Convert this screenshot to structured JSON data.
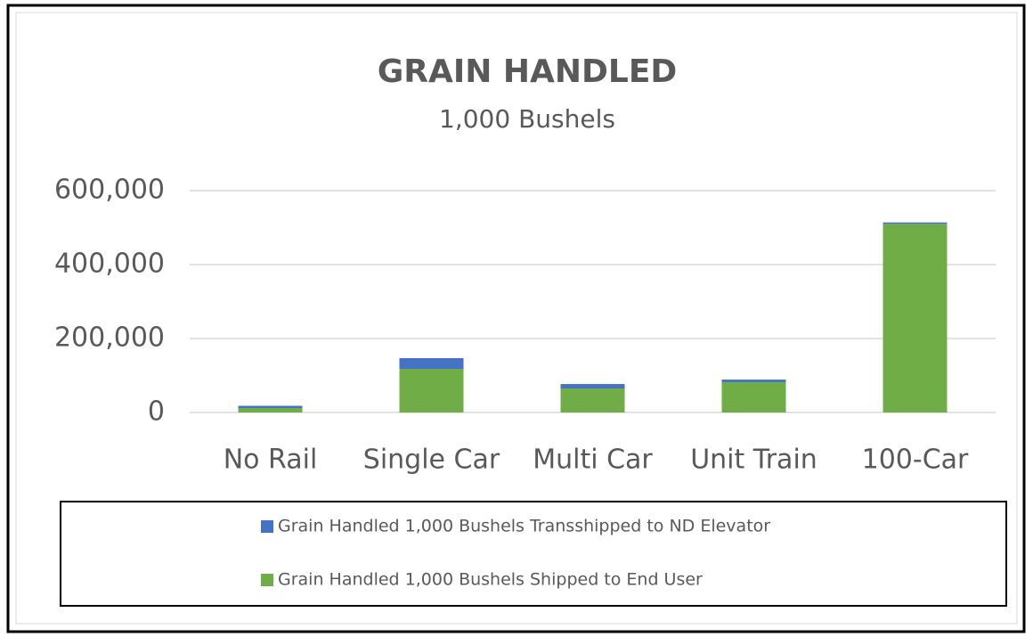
{
  "chart_data": {
    "type": "stacked_bar",
    "title": "GRAIN HANDLED",
    "subtitle": "1,000 Bushels",
    "categories": [
      "No Rail",
      "Single Car",
      "Multi Car",
      "Unit Train",
      "100-Car"
    ],
    "series": [
      {
        "name": "Grain Handled 1,000 Bushels Transshipped to ND Elevator",
        "color": "#4472c4",
        "values": [
          6000,
          29000,
          12000,
          7000,
          4000
        ]
      },
      {
        "name": "Grain Handled 1,000 Bushels Shipped to End User",
        "color": "#70ad47",
        "values": [
          12000,
          118000,
          65000,
          82000,
          510000
        ]
      }
    ],
    "ylim": [
      0,
      600000
    ],
    "yticks": [
      0,
      {
        "value": 200000,
        "label": "200,000"
      },
      {
        "value": 400000,
        "label": "400,000"
      },
      {
        "value": 600000,
        "label": "600,000"
      }
    ],
    "grid": true
  }
}
